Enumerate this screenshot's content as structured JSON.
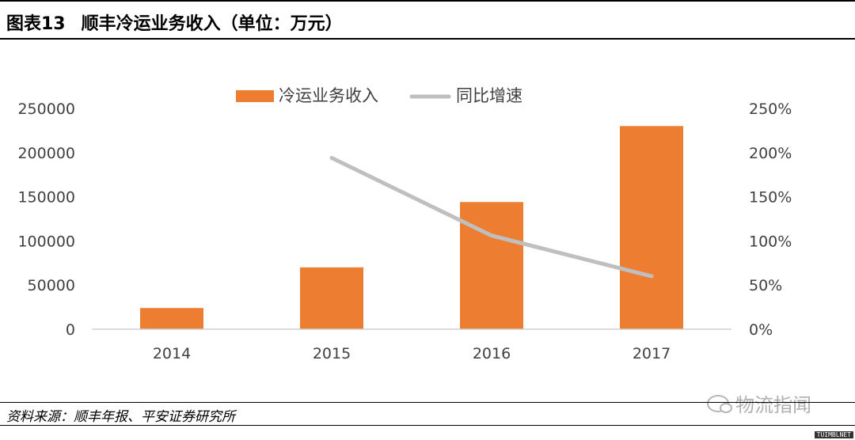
{
  "header": {
    "figure_no": "图表13",
    "title": "顺丰冷运业务收入（单位：万元）"
  },
  "chart_data": {
    "type": "bar",
    "categories": [
      "2014",
      "2015",
      "2016",
      "2017"
    ],
    "series": [
      {
        "name": "冷运业务收入",
        "kind": "bar",
        "axis": "left",
        "color": "#ED7D31",
        "values": [
          24000,
          70000,
          144000,
          230000
        ]
      },
      {
        "name": "同比增速",
        "kind": "line",
        "axis": "right",
        "color": "#BFBFBF",
        "values": [
          null,
          1.94,
          1.06,
          0.6
        ]
      }
    ],
    "y_left": {
      "min": 0,
      "max": 250000,
      "ticks": [
        "0",
        "50000",
        "100000",
        "150000",
        "200000",
        "250000"
      ]
    },
    "y_right": {
      "min": 0,
      "max": 2.5,
      "ticks": [
        "0%",
        "50%",
        "100%",
        "150%",
        "200%",
        "250%"
      ]
    },
    "legend_position": "top",
    "grid": false
  },
  "footer": {
    "source": "资料来源：顺丰年报、平安证券研究所"
  },
  "watermark": {
    "text": "物流指闻",
    "icon": "wechat-icon"
  },
  "corner_tag": "TUIMBLNET"
}
